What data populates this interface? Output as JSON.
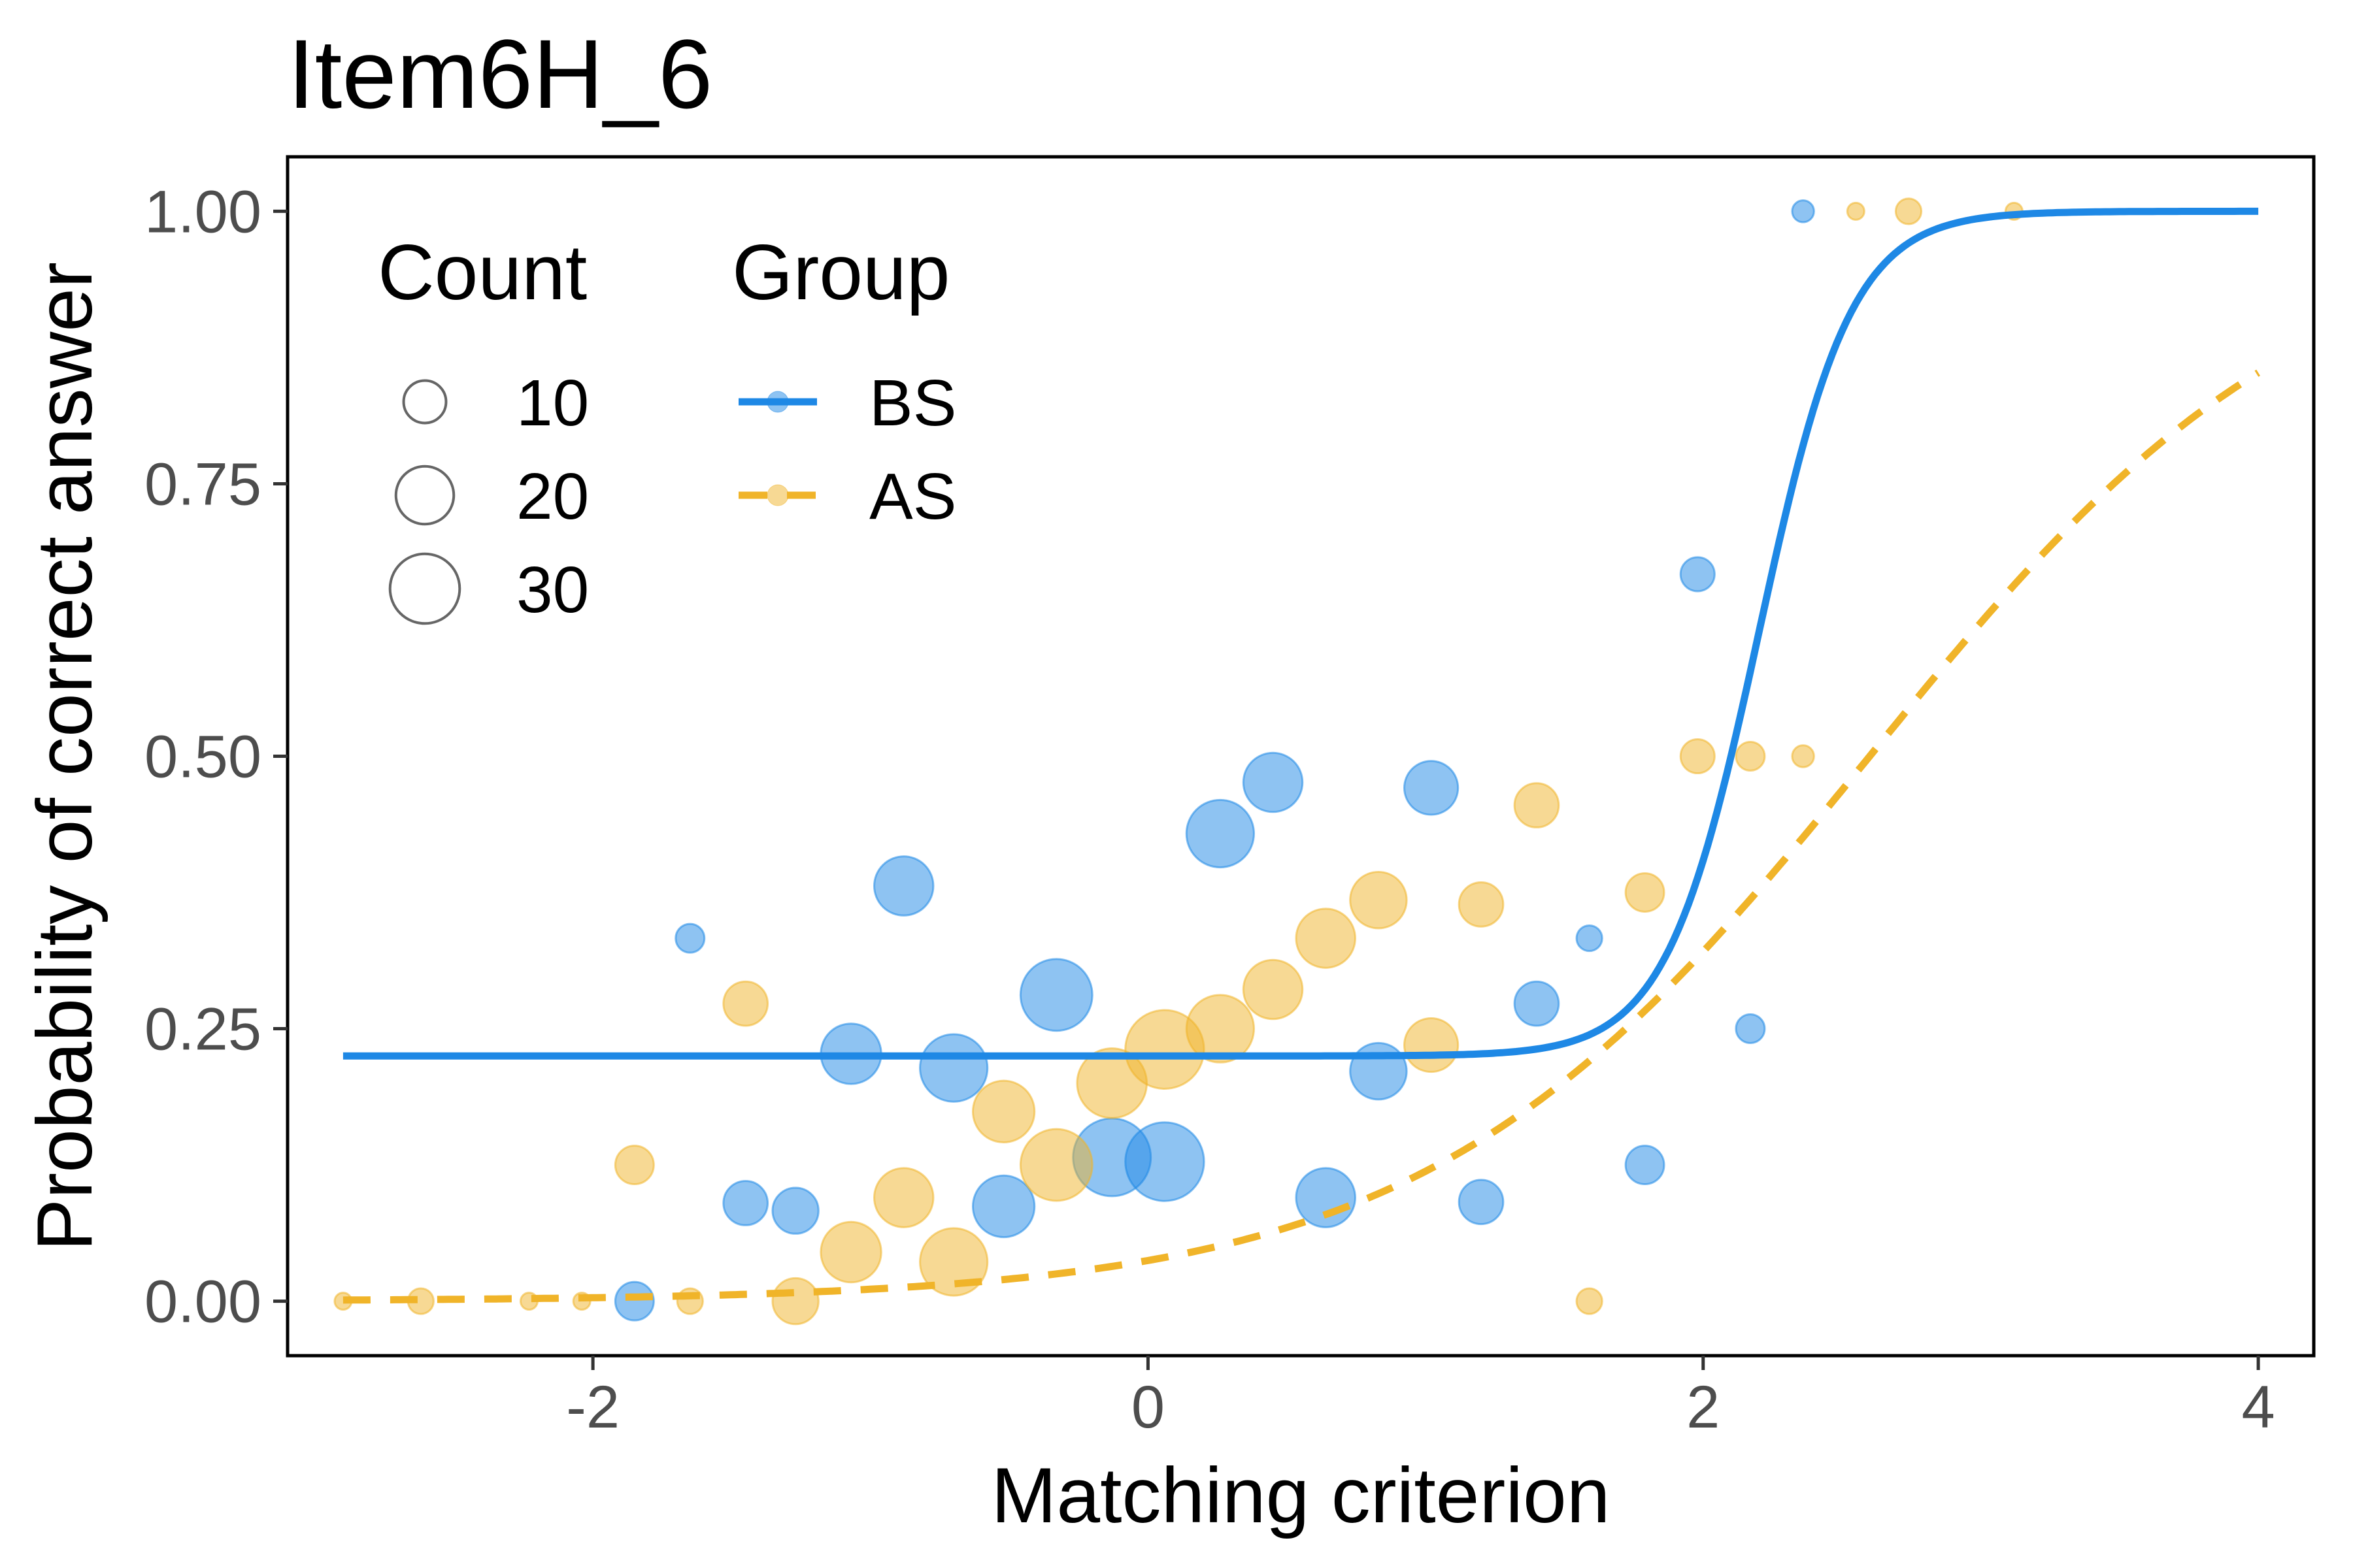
{
  "chart_data": {
    "type": "scatter",
    "title": "Item6H_6",
    "xlabel": "Matching criterion",
    "ylabel": "Probability of correct answer",
    "xlim": [
      -3.1,
      4.2
    ],
    "ylim": [
      -0.05,
      1.05
    ],
    "x_ticks": [
      -2,
      0,
      2,
      4
    ],
    "x_tick_labels": [
      "-2",
      "0",
      "2",
      "4"
    ],
    "y_ticks": [
      0,
      0.25,
      0.5,
      0.75,
      1
    ],
    "y_tick_labels": [
      "0.00",
      "0.25",
      "0.50",
      "0.75",
      "1.00"
    ],
    "grid": false,
    "legend_placement": "top-left",
    "legend": {
      "count": {
        "title": "Count",
        "entries": [
          {
            "label": "10",
            "value": 10
          },
          {
            "label": "20",
            "value": 20
          },
          {
            "label": "30",
            "value": 30
          }
        ]
      },
      "group": {
        "title": "Group",
        "entries": [
          {
            "label": "BS",
            "color": "#1e88e5",
            "dash": "solid"
          },
          {
            "label": "AS",
            "color": "#f0b429",
            "dash": "dashed"
          }
        ]
      }
    },
    "series": [
      {
        "name": "BS",
        "color": "#1e88e5",
        "line_style": "solid",
        "curve_x_range": [
          -2.9,
          4.0
        ],
        "curve": {
          "c": 0.225,
          "d": 1.0,
          "a": 6.0,
          "b": 2.2
        },
        "points": [
          {
            "x": -1.85,
            "y": 0.0,
            "count": 8
          },
          {
            "x": -1.65,
            "y": 0.333,
            "count": 4
          },
          {
            "x": -1.45,
            "y": 0.09,
            "count": 11
          },
          {
            "x": -1.27,
            "y": 0.083,
            "count": 12
          },
          {
            "x": -1.07,
            "y": 0.227,
            "count": 22
          },
          {
            "x": -0.88,
            "y": 0.381,
            "count": 21
          },
          {
            "x": -0.7,
            "y": 0.214,
            "count": 28
          },
          {
            "x": -0.52,
            "y": 0.087,
            "count": 23
          },
          {
            "x": -0.33,
            "y": 0.281,
            "count": 32
          },
          {
            "x": -0.13,
            "y": 0.132,
            "count": 38
          },
          {
            "x": 0.06,
            "y": 0.128,
            "count": 39
          },
          {
            "x": 0.26,
            "y": 0.429,
            "count": 28
          },
          {
            "x": 0.45,
            "y": 0.476,
            "count": 21
          },
          {
            "x": 0.64,
            "y": 0.095,
            "count": 21
          },
          {
            "x": 0.83,
            "y": 0.211,
            "count": 19
          },
          {
            "x": 1.02,
            "y": 0.471,
            "count": 17
          },
          {
            "x": 1.2,
            "y": 0.091,
            "count": 11
          },
          {
            "x": 1.4,
            "y": 0.273,
            "count": 11
          },
          {
            "x": 1.59,
            "y": 0.333,
            "count": 3
          },
          {
            "x": 1.79,
            "y": 0.125,
            "count": 8
          },
          {
            "x": 1.98,
            "y": 0.667,
            "count": 6
          },
          {
            "x": 2.17,
            "y": 0.25,
            "count": 4
          },
          {
            "x": 2.36,
            "y": 1.0,
            "count": 2
          }
        ]
      },
      {
        "name": "AS",
        "color": "#f0b429",
        "line_style": "dashed",
        "curve_x_range": [
          -2.9,
          4.0
        ],
        "curve": {
          "c": 0.0,
          "d": 1.0,
          "a": 1.25,
          "b": 2.6
        },
        "points": [
          {
            "x": -2.9,
            "y": 0.0,
            "count": 1
          },
          {
            "x": -2.62,
            "y": 0.0,
            "count": 3
          },
          {
            "x": -2.23,
            "y": 0.0,
            "count": 1
          },
          {
            "x": -2.04,
            "y": 0.0,
            "count": 1
          },
          {
            "x": -1.85,
            "y": 0.125,
            "count": 8
          },
          {
            "x": -1.65,
            "y": 0.0,
            "count": 3
          },
          {
            "x": -1.45,
            "y": 0.273,
            "count": 11
          },
          {
            "x": -1.27,
            "y": 0.0,
            "count": 12
          },
          {
            "x": -1.07,
            "y": 0.045,
            "count": 22
          },
          {
            "x": -0.88,
            "y": 0.095,
            "count": 21
          },
          {
            "x": -0.7,
            "y": 0.036,
            "count": 28
          },
          {
            "x": -0.52,
            "y": 0.174,
            "count": 23
          },
          {
            "x": -0.33,
            "y": 0.125,
            "count": 32
          },
          {
            "x": -0.13,
            "y": 0.2,
            "count": 30
          },
          {
            "x": 0.06,
            "y": 0.231,
            "count": 39
          },
          {
            "x": 0.26,
            "y": 0.25,
            "count": 28
          },
          {
            "x": 0.45,
            "y": 0.286,
            "count": 21
          },
          {
            "x": 0.64,
            "y": 0.333,
            "count": 21
          },
          {
            "x": 0.83,
            "y": 0.368,
            "count": 19
          },
          {
            "x": 1.02,
            "y": 0.235,
            "count": 17
          },
          {
            "x": 1.2,
            "y": 0.364,
            "count": 11
          },
          {
            "x": 1.4,
            "y": 0.455,
            "count": 11
          },
          {
            "x": 1.59,
            "y": 0.0,
            "count": 3
          },
          {
            "x": 1.79,
            "y": 0.375,
            "count": 8
          },
          {
            "x": 1.98,
            "y": 0.5,
            "count": 6
          },
          {
            "x": 2.17,
            "y": 0.5,
            "count": 4
          },
          {
            "x": 2.36,
            "y": 0.5,
            "count": 2
          },
          {
            "x": 2.55,
            "y": 1.0,
            "count": 1
          },
          {
            "x": 2.74,
            "y": 1.0,
            "count": 3
          },
          {
            "x": 3.12,
            "y": 1.0,
            "count": 1
          }
        ]
      }
    ]
  }
}
